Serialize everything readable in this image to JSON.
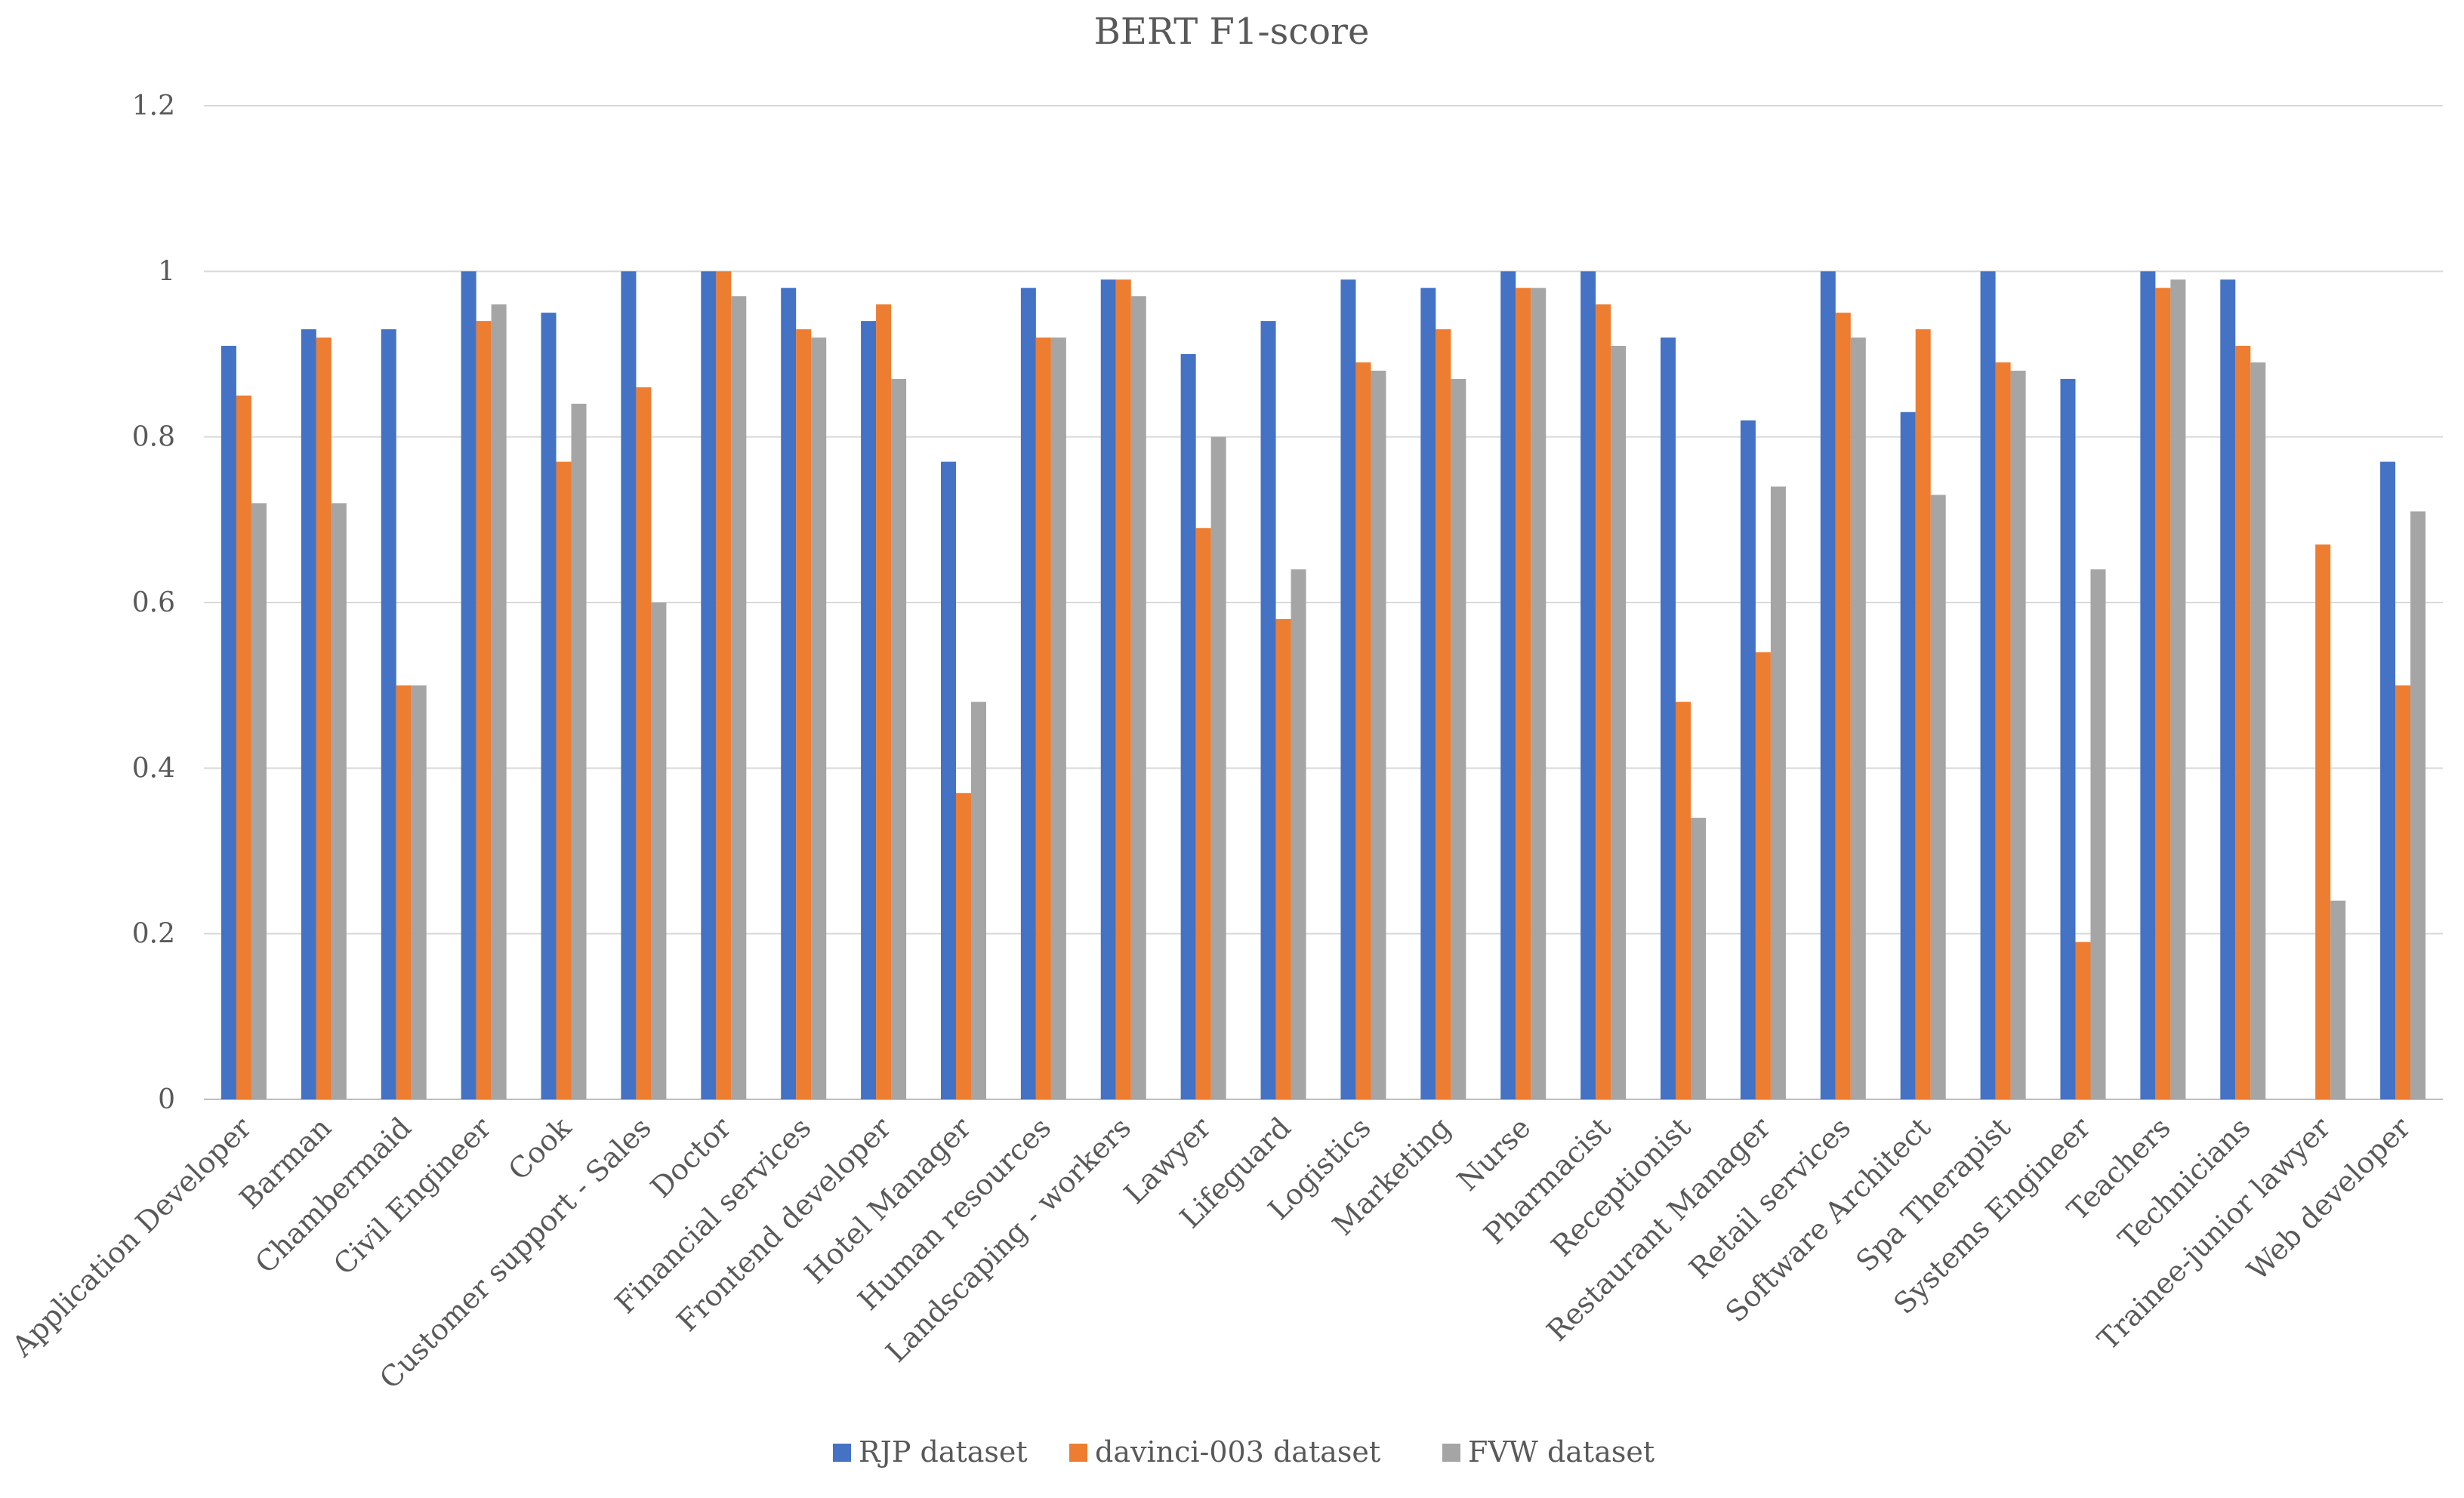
{
  "chart_data": {
    "type": "bar",
    "title": "BERT F1-score",
    "xlabel": "",
    "ylabel": "",
    "ylim": [
      0,
      1.2
    ],
    "yticks": [
      0,
      0.2,
      0.4,
      0.6,
      0.8,
      1,
      1.2
    ],
    "ytick_labels": [
      "0",
      "0.2",
      "0.4",
      "0.6",
      "0.8",
      "1",
      "1.2"
    ],
    "grid": true,
    "legend_position": "bottom",
    "categories": [
      "Application Developer",
      "Barman",
      "Chambermaid",
      "Civil Engineer",
      "Cook",
      "Customer support - Sales",
      "Doctor",
      "Financial services",
      "Frontend developer",
      "Hotel Manager",
      "Human resources",
      "Landscaping - workers",
      "Lawyer",
      "Lifeguard",
      "Logistics",
      "Marketing",
      "Nurse",
      "Pharmacist",
      "Receptionist",
      "Restaurant Manager",
      "Retail services",
      "Software Architect",
      "Spa Therapist",
      "Systems Engineer",
      "Teachers",
      "Technicians",
      "Trainee-junior lawyer",
      "Web developer"
    ],
    "series": [
      {
        "name": "RJP dataset",
        "color": "#4472c4",
        "values": [
          0.91,
          0.93,
          0.93,
          1.0,
          0.95,
          1.0,
          1.0,
          0.98,
          0.94,
          0.77,
          0.98,
          0.99,
          0.9,
          0.94,
          0.99,
          0.98,
          1.0,
          1.0,
          0.92,
          0.82,
          1.0,
          0.83,
          1.0,
          0.87,
          1.0,
          0.99,
          0.0,
          0.77
        ]
      },
      {
        "name": "davinci-003 dataset",
        "color": "#ed7d31",
        "values": [
          0.85,
          0.92,
          0.5,
          0.94,
          0.77,
          0.86,
          1.0,
          0.93,
          0.96,
          0.37,
          0.92,
          0.99,
          0.69,
          0.58,
          0.89,
          0.93,
          0.98,
          0.96,
          0.48,
          0.54,
          0.95,
          0.93,
          0.89,
          0.19,
          0.98,
          0.91,
          0.67,
          0.5
        ]
      },
      {
        "name": "FVW dataset",
        "color": "#a5a5a5",
        "values": [
          0.72,
          0.72,
          0.5,
          0.96,
          0.84,
          0.6,
          0.97,
          0.92,
          0.87,
          0.48,
          0.92,
          0.97,
          0.8,
          0.64,
          0.88,
          0.87,
          0.98,
          0.91,
          0.34,
          0.74,
          0.92,
          0.73,
          0.88,
          0.64,
          0.99,
          0.89,
          0.24,
          0.71
        ]
      }
    ]
  }
}
